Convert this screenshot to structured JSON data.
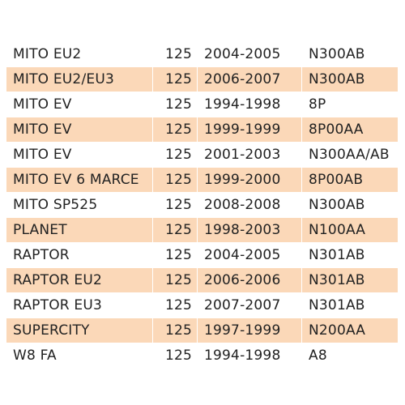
{
  "table": {
    "row_colors": {
      "odd": "#ffffff",
      "even": "#fbd8b8"
    },
    "rows": [
      {
        "model": "MITO EU2",
        "cc": "125",
        "years": "2004-2005",
        "code": "N300AB"
      },
      {
        "model": "MITO EU2/EU3",
        "cc": "125",
        "years": "2006-2007",
        "code": "N300AB"
      },
      {
        "model": "MITO EV",
        "cc": "125",
        "years": "1994-1998",
        "code": "8P"
      },
      {
        "model": "MITO EV",
        "cc": "125",
        "years": "1999-1999",
        "code": "8P00AA"
      },
      {
        "model": "MITO EV",
        "cc": "125",
        "years": "2001-2003",
        "code": "N300AA/AB"
      },
      {
        "model": "MITO EV 6 MARCE",
        "cc": "125",
        "years": "1999-2000",
        "code": "8P00AB"
      },
      {
        "model": "MITO SP525",
        "cc": "125",
        "years": "2008-2008",
        "code": "N300AB"
      },
      {
        "model": "PLANET",
        "cc": "125",
        "years": "1998-2003",
        "code": "N100AA"
      },
      {
        "model": "RAPTOR",
        "cc": "125",
        "years": "2004-2005",
        "code": "N301AB"
      },
      {
        "model": "RAPTOR EU2",
        "cc": "125",
        "years": "2006-2006",
        "code": "N301AB"
      },
      {
        "model": "RAPTOR EU3",
        "cc": "125",
        "years": "2007-2007",
        "code": "N301AB"
      },
      {
        "model": "SUPERCITY",
        "cc": "125",
        "years": "1997-1999",
        "code": "N200AA"
      },
      {
        "model": "W8 FA",
        "cc": "125",
        "years": "1994-1998",
        "code": "A8"
      }
    ]
  }
}
